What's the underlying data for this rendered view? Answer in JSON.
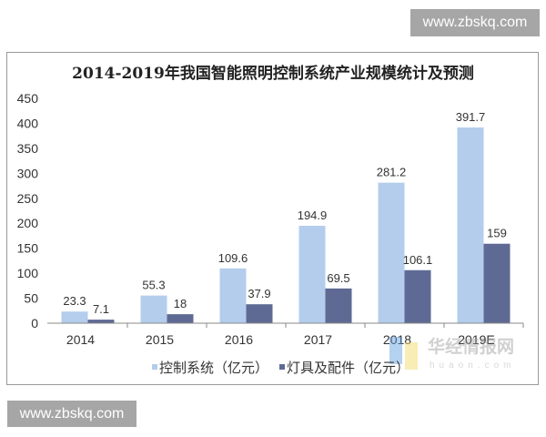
{
  "watermarks": {
    "top": "www.zbskq.com",
    "bottom": "www.zbskq.com",
    "logo_cn": "华经情报网",
    "logo_en": "huaon.com"
  },
  "colors": {
    "series1": "#b4cdec",
    "series2": "#5f6a94"
  },
  "chart_data": {
    "type": "bar",
    "title": "2014-2019年我国智能照明控制系统产业规模统计及预测",
    "categories": [
      "2014",
      "2015",
      "2016",
      "2017",
      "2018",
      "2019E"
    ],
    "series": [
      {
        "name": "控制系统（亿元）",
        "values": [
          23.3,
          55.3,
          109.6,
          194.9,
          281.2,
          391.7
        ],
        "labels": [
          "23.3",
          "55.3",
          "109.6",
          "194.9",
          "281.2",
          "391.7"
        ]
      },
      {
        "name": "灯具及配件（亿元）",
        "values": [
          7.1,
          18,
          37.9,
          69.5,
          106.1,
          159
        ],
        "labels": [
          "7.1",
          "18",
          "37.9",
          "69.5",
          "106.1",
          "159"
        ]
      }
    ],
    "yticks": [
      "0",
      "50",
      "100",
      "150",
      "200",
      "250",
      "300",
      "350",
      "400",
      "450"
    ],
    "ylim": [
      0,
      450
    ],
    "xlabel": "",
    "ylabel": "",
    "grid": false,
    "legend": "bottom"
  }
}
